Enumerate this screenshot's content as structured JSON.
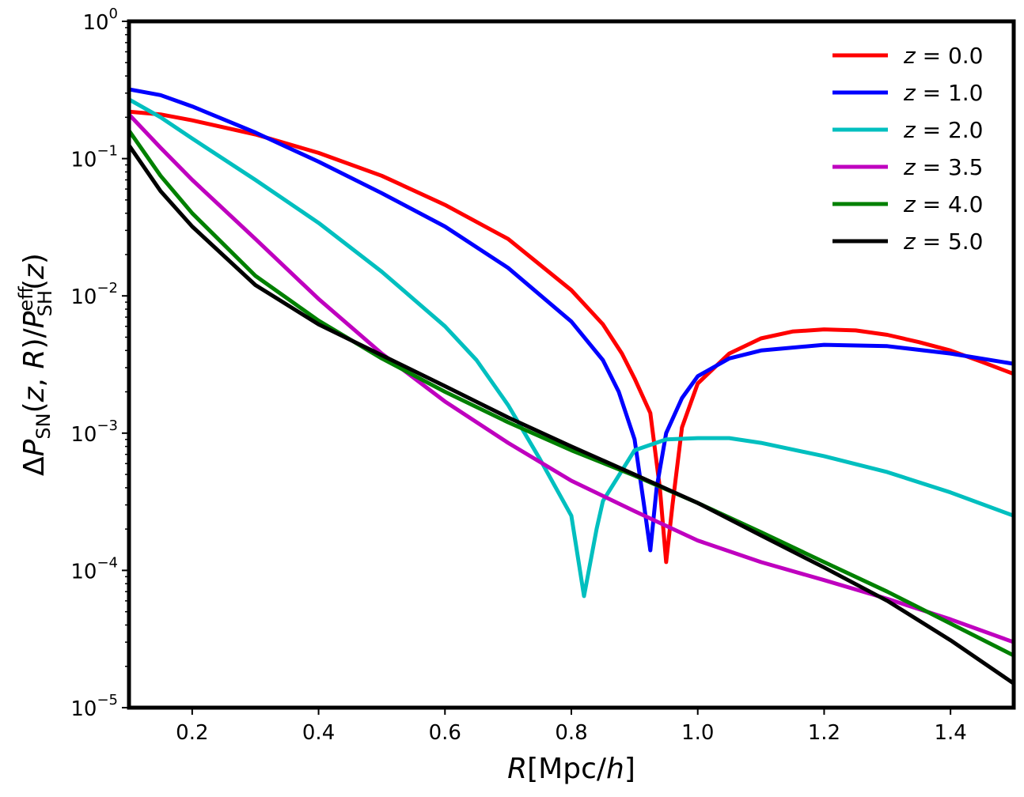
{
  "chart_data": {
    "type": "line",
    "xlabel": "R[Mpc/h]",
    "ylabel": "ΔP_SN(z,R)/P_SH^eff(z)",
    "xlim": [
      0.1,
      1.5
    ],
    "ylim": [
      1e-05,
      1
    ],
    "yscale": "log",
    "grid": false,
    "legend_position": "top-right",
    "x_ticks": [
      {
        "value": 0.2,
        "label": "0.2"
      },
      {
        "value": 0.4,
        "label": "0.4"
      },
      {
        "value": 0.6,
        "label": "0.6"
      },
      {
        "value": 0.8,
        "label": "0.8"
      },
      {
        "value": 1.0,
        "label": "1.0"
      },
      {
        "value": 1.2,
        "label": "1.2"
      },
      {
        "value": 1.4,
        "label": "1.4"
      }
    ],
    "y_ticks": [
      {
        "value": 1e-05,
        "base": "10",
        "exp": "−5"
      },
      {
        "value": 0.0001,
        "base": "10",
        "exp": "−4"
      },
      {
        "value": 0.001,
        "base": "10",
        "exp": "−3"
      },
      {
        "value": 0.01,
        "base": "10",
        "exp": "−2"
      },
      {
        "value": 0.1,
        "base": "10",
        "exp": "−1"
      },
      {
        "value": 1,
        "base": "10",
        "exp": "0"
      }
    ],
    "series": [
      {
        "name": "z = 0.0",
        "color": "#ff0000",
        "points": [
          [
            0.1,
            0.22
          ],
          [
            0.15,
            0.21
          ],
          [
            0.2,
            0.19
          ],
          [
            0.3,
            0.15
          ],
          [
            0.4,
            0.11
          ],
          [
            0.5,
            0.075
          ],
          [
            0.6,
            0.046
          ],
          [
            0.7,
            0.026
          ],
          [
            0.8,
            0.011
          ],
          [
            0.85,
            0.0062
          ],
          [
            0.88,
            0.0038
          ],
          [
            0.9,
            0.0025
          ],
          [
            0.925,
            0.0014
          ],
          [
            0.94,
            0.0004
          ],
          [
            0.95,
            0.000115
          ],
          [
            0.96,
            0.0003
          ],
          [
            0.975,
            0.0011
          ],
          [
            1.0,
            0.0023
          ],
          [
            1.05,
            0.0038
          ],
          [
            1.1,
            0.0049
          ],
          [
            1.15,
            0.0055
          ],
          [
            1.2,
            0.0057
          ],
          [
            1.25,
            0.0056
          ],
          [
            1.3,
            0.0052
          ],
          [
            1.35,
            0.0046
          ],
          [
            1.4,
            0.004
          ],
          [
            1.45,
            0.0033
          ],
          [
            1.5,
            0.0027
          ]
        ]
      },
      {
        "name": "z = 1.0",
        "color": "#0000ff",
        "points": [
          [
            0.1,
            0.32
          ],
          [
            0.15,
            0.29
          ],
          [
            0.2,
            0.24
          ],
          [
            0.3,
            0.155
          ],
          [
            0.4,
            0.095
          ],
          [
            0.5,
            0.056
          ],
          [
            0.6,
            0.032
          ],
          [
            0.7,
            0.016
          ],
          [
            0.8,
            0.0065
          ],
          [
            0.85,
            0.0034
          ],
          [
            0.875,
            0.002
          ],
          [
            0.9,
            0.0009
          ],
          [
            0.915,
            0.0003
          ],
          [
            0.925,
            0.00014
          ],
          [
            0.935,
            0.0004
          ],
          [
            0.95,
            0.001
          ],
          [
            0.975,
            0.0018
          ],
          [
            1.0,
            0.0026
          ],
          [
            1.05,
            0.0035
          ],
          [
            1.1,
            0.004
          ],
          [
            1.2,
            0.0044
          ],
          [
            1.3,
            0.0043
          ],
          [
            1.4,
            0.0038
          ],
          [
            1.5,
            0.0032
          ]
        ]
      },
      {
        "name": "z = 2.0",
        "color": "#00bfbf",
        "points": [
          [
            0.1,
            0.27
          ],
          [
            0.15,
            0.2
          ],
          [
            0.2,
            0.14
          ],
          [
            0.3,
            0.07
          ],
          [
            0.4,
            0.034
          ],
          [
            0.5,
            0.015
          ],
          [
            0.6,
            0.006
          ],
          [
            0.65,
            0.0034
          ],
          [
            0.7,
            0.0016
          ],
          [
            0.75,
            0.00065
          ],
          [
            0.8,
            0.00025
          ],
          [
            0.82,
            6.5e-05
          ],
          [
            0.84,
            0.0002
          ],
          [
            0.85,
            0.00032
          ],
          [
            0.9,
            0.00075
          ],
          [
            0.95,
            0.0009
          ],
          [
            1.0,
            0.00092
          ],
          [
            1.05,
            0.00092
          ],
          [
            1.1,
            0.00085
          ],
          [
            1.2,
            0.00068
          ],
          [
            1.3,
            0.00052
          ],
          [
            1.4,
            0.00037
          ],
          [
            1.5,
            0.00025
          ]
        ]
      },
      {
        "name": "z = 3.5",
        "color": "#bf00bf",
        "points": [
          [
            0.1,
            0.21
          ],
          [
            0.15,
            0.12
          ],
          [
            0.2,
            0.07
          ],
          [
            0.3,
            0.026
          ],
          [
            0.4,
            0.0095
          ],
          [
            0.5,
            0.0038
          ],
          [
            0.6,
            0.0017
          ],
          [
            0.7,
            0.00085
          ],
          [
            0.8,
            0.00045
          ],
          [
            0.9,
            0.00027
          ],
          [
            1.0,
            0.000165
          ],
          [
            1.1,
            0.000115
          ],
          [
            1.2,
            8.5e-05
          ],
          [
            1.3,
            6.2e-05
          ],
          [
            1.4,
            4.4e-05
          ],
          [
            1.5,
            3e-05
          ]
        ]
      },
      {
        "name": "z = 4.0",
        "color": "#008000",
        "points": [
          [
            0.1,
            0.16
          ],
          [
            0.15,
            0.075
          ],
          [
            0.2,
            0.04
          ],
          [
            0.3,
            0.014
          ],
          [
            0.4,
            0.0066
          ],
          [
            0.5,
            0.0035
          ],
          [
            0.6,
            0.002
          ],
          [
            0.7,
            0.0012
          ],
          [
            0.8,
            0.00075
          ],
          [
            0.9,
            0.00049
          ],
          [
            1.0,
            0.00031
          ],
          [
            1.1,
            0.00019
          ],
          [
            1.2,
            0.000115
          ],
          [
            1.3,
            7e-05
          ],
          [
            1.4,
            4.1e-05
          ],
          [
            1.5,
            2.4e-05
          ]
        ]
      },
      {
        "name": "z = 5.0",
        "color": "#000000",
        "points": [
          [
            0.1,
            0.125
          ],
          [
            0.15,
            0.058
          ],
          [
            0.2,
            0.032
          ],
          [
            0.3,
            0.012
          ],
          [
            0.4,
            0.0062
          ],
          [
            0.5,
            0.0037
          ],
          [
            0.6,
            0.0022
          ],
          [
            0.7,
            0.0013
          ],
          [
            0.8,
            0.0008
          ],
          [
            0.9,
            0.0005
          ],
          [
            1.0,
            0.00031
          ],
          [
            1.1,
            0.00018
          ],
          [
            1.2,
            0.000105
          ],
          [
            1.3,
            6e-05
          ],
          [
            1.4,
            3.1e-05
          ],
          [
            1.5,
            1.5e-05
          ]
        ]
      }
    ]
  }
}
